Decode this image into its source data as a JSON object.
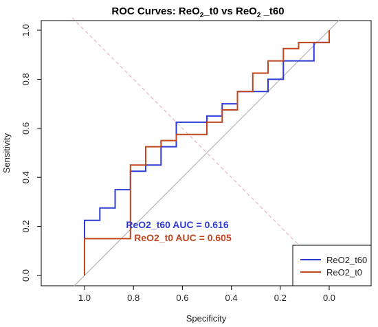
{
  "chart_data": {
    "type": "line",
    "title": "ROC Curves: ReO",
    "title_parts": [
      "ROC Curves: ReO",
      "2",
      "_t0 vs ReO",
      "2",
      " _t60"
    ],
    "xlabel": "Specificity",
    "ylabel": "Sensitivity",
    "xlim": [
      1.0,
      0.0
    ],
    "ylim": [
      0.0,
      1.0
    ],
    "x_ticks": [
      1.0,
      0.8,
      0.6,
      0.4,
      0.2,
      0.0
    ],
    "x_tick_labels": [
      "1.0",
      "0.8",
      "0.6",
      "0.4",
      "0.2",
      "0.0"
    ],
    "y_ticks": [
      0.0,
      0.2,
      0.4,
      0.6,
      0.8,
      1.0
    ],
    "y_tick_labels": [
      "0.0",
      "0.2",
      "0.4",
      "0.6",
      "0.8",
      "1.0"
    ],
    "grid": false,
    "legend_placement": "bottom-right",
    "diagonal_color": "#aaaaaa",
    "crossing_line_color": "#e3a6c6",
    "series": [
      {
        "name": "ReO2_t60",
        "color": "#2e3ad6",
        "auc_label": "ReO2_t60 AUC = 0.616",
        "x": [
          1.0,
          1.0,
          0.9375,
          0.9375,
          0.875,
          0.875,
          0.8125,
          0.8125,
          0.75,
          0.75,
          0.6875,
          0.6875,
          0.625,
          0.625,
          0.5,
          0.5,
          0.4375,
          0.4375,
          0.375,
          0.375,
          0.25,
          0.25,
          0.1875,
          0.1875,
          0.0625,
          0.0625,
          0.0,
          0.0
        ],
        "y": [
          0.0,
          0.225,
          0.225,
          0.275,
          0.275,
          0.35,
          0.35,
          0.425,
          0.425,
          0.45,
          0.45,
          0.525,
          0.525,
          0.625,
          0.625,
          0.65,
          0.65,
          0.7,
          0.7,
          0.75,
          0.75,
          0.8,
          0.8,
          0.875,
          0.875,
          0.95,
          0.95,
          1.0
        ]
      },
      {
        "name": "ReO2_t0",
        "color": "#c0461f",
        "auc_label": "ReO2_t0 AUC = 0.605",
        "x": [
          1.0,
          1.0,
          0.8125,
          0.8125,
          0.75,
          0.75,
          0.6875,
          0.6875,
          0.625,
          0.625,
          0.5,
          0.5,
          0.4375,
          0.4375,
          0.375,
          0.375,
          0.3125,
          0.3125,
          0.25,
          0.25,
          0.1875,
          0.1875,
          0.125,
          0.125,
          0.0,
          0.0
        ],
        "y": [
          0.0,
          0.15,
          0.15,
          0.45,
          0.45,
          0.525,
          0.525,
          0.55,
          0.55,
          0.575,
          0.575,
          0.625,
          0.625,
          0.675,
          0.675,
          0.75,
          0.75,
          0.825,
          0.825,
          0.875,
          0.875,
          0.925,
          0.925,
          0.95,
          0.95,
          1.0
        ]
      }
    ]
  }
}
